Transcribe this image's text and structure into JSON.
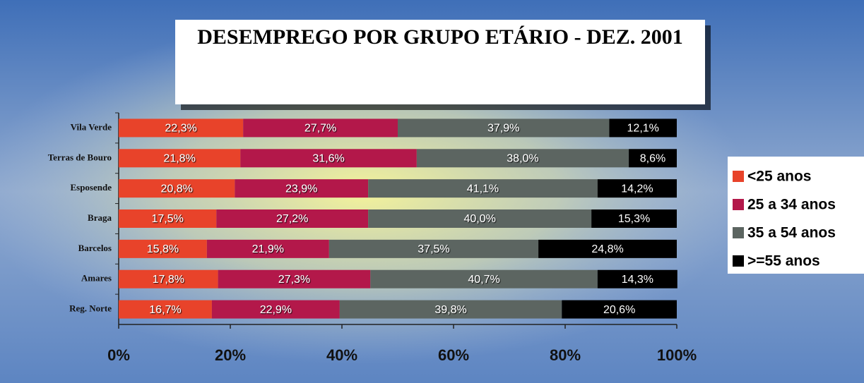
{
  "chart_data": {
    "type": "bar",
    "orientation": "horizontal",
    "stacked": true,
    "title": "DESEMPREGO POR GRUPO ETÁRIO - DEZ. 2001",
    "categories": [
      "Vila Verde",
      "Terras de Bouro",
      "Esposende",
      "Braga",
      "Barcelos",
      "Amares",
      "Reg. Norte"
    ],
    "series": [
      {
        "name": "<25 anos",
        "color": "#e8432a",
        "values": [
          22.3,
          21.8,
          20.8,
          17.5,
          15.8,
          17.8,
          16.7
        ],
        "value_labels": [
          "22,3%",
          "21,8%",
          "20,8%",
          "17,5%",
          "15,8%",
          "17,8%",
          "16,7%"
        ]
      },
      {
        "name": "25 a 34 anos",
        "color": "#b3184a",
        "values": [
          27.7,
          31.6,
          23.9,
          27.2,
          21.9,
          27.3,
          22.9
        ],
        "value_labels": [
          "27,7%",
          "31,6%",
          "23,9%",
          "27,2%",
          "21,9%",
          "27,3%",
          "22,9%"
        ]
      },
      {
        "name": "35 a 54 anos",
        "color": "#5c6561",
        "values": [
          37.9,
          38.0,
          41.1,
          40.0,
          37.5,
          40.7,
          39.8
        ],
        "value_labels": [
          "37,9%",
          "38,0%",
          "41,1%",
          "40,0%",
          "37,5%",
          "40,7%",
          "39,8%"
        ]
      },
      {
        "name": ">=55 anos",
        "color": "#000000",
        "values": [
          12.1,
          8.6,
          14.2,
          15.3,
          24.8,
          14.3,
          20.6
        ],
        "value_labels": [
          "12,1%",
          "8,6%",
          "14,2%",
          "15,3%",
          "24,8%",
          "14,3%",
          "20,6%"
        ]
      }
    ],
    "xlim": [
      0,
      100
    ],
    "xticks": [
      {
        "value": 0,
        "label": "0%"
      },
      {
        "value": 20,
        "label": "20%"
      },
      {
        "value": 40,
        "label": "40%"
      },
      {
        "value": 60,
        "label": "60%"
      },
      {
        "value": 80,
        "label": "80%"
      },
      {
        "value": 100,
        "label": "100%"
      }
    ],
    "legend": "right"
  }
}
